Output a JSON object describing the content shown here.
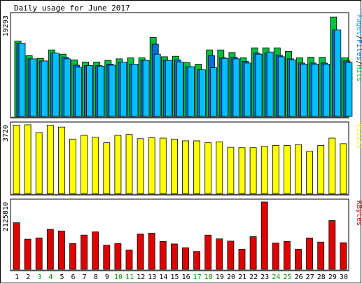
{
  "chart_data": {
    "type": "bar",
    "title": "Daily usage for June 2017",
    "categories": [
      "1",
      "2",
      "3",
      "4",
      "5",
      "6",
      "7",
      "8",
      "9",
      "10",
      "11",
      "12",
      "13",
      "14",
      "15",
      "16",
      "17",
      "18",
      "19",
      "20",
      "21",
      "22",
      "23",
      "24",
      "25",
      "26",
      "27",
      "28",
      "29",
      "30"
    ],
    "weekend_days": [
      "3",
      "4",
      "10",
      "11",
      "17",
      "18",
      "24",
      "25"
    ],
    "colors": {
      "background": "#ffffff",
      "plot_background": "#ffffff",
      "frame": "#000000",
      "hits": "#00c040",
      "files": "#0070e0",
      "pages": "#00c0ff",
      "visits": "#ffff00",
      "kbytes": "#e00000",
      "weekday_label": "#000000",
      "weekend_label": "#00a000",
      "bar_outline": "#000000"
    },
    "panels": [
      {
        "id": "hits-files-pages",
        "max_label": "19293",
        "legend": [
          {
            "text": "Pages",
            "color": "#00c0ff"
          },
          {
            "text": "/",
            "color": "#000000"
          },
          {
            "text": "Files",
            "color": "#0070e0"
          },
          {
            "text": "/",
            "color": "#000000"
          },
          {
            "text": "Hits",
            "color": "#00c040"
          }
        ],
        "ylim": [
          0,
          19293
        ],
        "series": [
          {
            "name": "Hits",
            "color": "#00c040",
            "values": [
              14400,
              11600,
              11100,
              12700,
              11900,
              10800,
              10400,
              10400,
              10700,
              11000,
              11200,
              11200,
              15100,
              11400,
              11500,
              10300,
              10000,
              12700,
              12700,
              12200,
              11200,
              13100,
              13100,
              13100,
              12400,
              11200,
              11300,
              11300,
              19000,
              11200
            ]
          },
          {
            "name": "Files",
            "color": "#0070e0",
            "values": [
              14000,
              11000,
              10600,
              12100,
              11300,
              9800,
              9700,
              9700,
              10000,
              10400,
              10000,
              10700,
              13800,
              10700,
              10800,
              9500,
              8900,
              11600,
              11200,
              11300,
              10500,
              12100,
              12100,
              11700,
              11000,
              10200,
              10200,
              10200,
              16500,
              10600
            ]
          },
          {
            "name": "Pages",
            "color": "#00c0ff",
            "values": [
              14000,
              11000,
              10600,
              12100,
              11000,
              9400,
              9700,
              9600,
              9800,
              10400,
              10000,
              10700,
              11900,
              10700,
              10400,
              9500,
              8900,
              9300,
              11100,
              11000,
              10200,
              11900,
              12300,
              11400,
              10800,
              10000,
              10000,
              10000,
              16500,
              10300
            ]
          }
        ]
      },
      {
        "id": "visits",
        "max_label": "3720",
        "legend": [
          {
            "text": "Visits",
            "color": "#ffff00"
          }
        ],
        "ylim": [
          0,
          3720
        ],
        "series": [
          {
            "name": "Visits",
            "color": "#ffff00",
            "values": [
              3700,
              3720,
              3300,
              3700,
              3600,
              2950,
              3150,
              3050,
              2750,
              3150,
              3200,
              2970,
              3020,
              3000,
              2950,
              2850,
              2850,
              2760,
              2800,
              2500,
              2480,
              2480,
              2550,
              2600,
              2600,
              2650,
              2280,
              2600,
              3000,
              2700
            ]
          }
        ]
      },
      {
        "id": "kbytes",
        "max_label": "2125810",
        "legend": [
          {
            "text": "KBytes",
            "color": "#e00000"
          }
        ],
        "ylim": [
          0,
          2125810
        ],
        "series": [
          {
            "name": "KBytes",
            "color": "#e00000",
            "values": [
              1470000,
              950000,
              990000,
              1260000,
              1210000,
              810000,
              1080000,
              1180000,
              760000,
              810000,
              610000,
              1110000,
              1140000,
              880000,
              800000,
              680000,
              560000,
              1080000,
              960000,
              890000,
              630000,
              1030000,
              2125810,
              830000,
              880000,
              630000,
              990000,
              860000,
              1540000,
              840000
            ]
          }
        ]
      }
    ],
    "xlabel": "",
    "ylabel": ""
  }
}
